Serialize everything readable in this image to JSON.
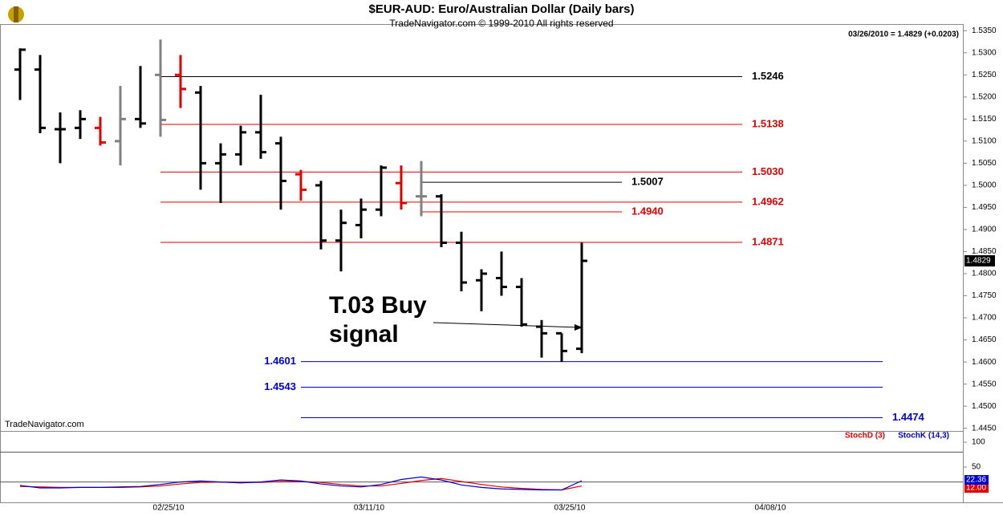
{
  "chart_data": [
    {
      "type": "ohlc",
      "title": "$EUR-AUD:  Euro/Australian Dollar  (Daily bars)",
      "subtitle": "TradeNavigator.com © 1999-2010 All rights reserved",
      "status": "03/26/2010 = 1.4829 (+0.0203)",
      "watermark": "TradeNavigator.com",
      "annotation": [
        "T.03 Buy",
        "signal"
      ],
      "xlim": [
        -1,
        47
      ],
      "xticks": [
        {
          "value": 7,
          "label": "02/25/10"
        },
        {
          "value": 17,
          "label": "03/11/10"
        },
        {
          "value": 27,
          "label": "03/25/10"
        },
        {
          "value": 37,
          "label": "04/08/10"
        }
      ],
      "ylim": [
        1.4444,
        1.5365
      ],
      "yticks": [
        {
          "value": 1.445,
          "label": "1.4450"
        },
        {
          "value": 1.45,
          "label": "1.4500"
        },
        {
          "value": 1.455,
          "label": "1.4550"
        },
        {
          "value": 1.46,
          "label": "1.4600"
        },
        {
          "value": 1.465,
          "label": "1.4650"
        },
        {
          "value": 1.47,
          "label": "1.4700"
        },
        {
          "value": 1.475,
          "label": "1.4750"
        },
        {
          "value": 1.48,
          "label": "1.4800"
        },
        {
          "value": 1.485,
          "label": "1.4850"
        },
        {
          "value": 1.49,
          "label": "1.4900"
        },
        {
          "value": 1.495,
          "label": "1.4950"
        },
        {
          "value": 1.5,
          "label": "1.5000"
        },
        {
          "value": 1.505,
          "label": "1.5050"
        },
        {
          "value": 1.51,
          "label": "1.5100"
        },
        {
          "value": 1.515,
          "label": "1.5150"
        },
        {
          "value": 1.52,
          "label": "1.5200"
        },
        {
          "value": 1.525,
          "label": "1.5250"
        },
        {
          "value": 1.53,
          "label": "1.5300"
        },
        {
          "value": 1.535,
          "label": "1.5350"
        }
      ],
      "last_price": 1.4829,
      "open": [
        1.5262,
        1.5262,
        1.5127,
        1.513,
        1.513,
        1.51,
        1.515,
        1.525,
        1.525,
        1.521,
        1.505,
        1.507,
        1.512,
        1.5095,
        1.5025,
        1.5,
        1.4875,
        1.491,
        1.4945,
        1.5005,
        1.4975,
        1.4975,
        1.487,
        1.4785,
        1.479,
        1.477,
        1.468,
        1.4665,
        1.463
      ],
      "high": [
        1.531,
        1.5295,
        1.5165,
        1.517,
        1.5155,
        1.5225,
        1.527,
        1.533,
        1.5295,
        1.5225,
        1.5095,
        1.5135,
        1.5205,
        1.511,
        1.5035,
        1.501,
        1.4945,
        1.497,
        1.5045,
        1.5045,
        1.5055,
        1.498,
        1.4895,
        1.481,
        1.485,
        1.479,
        1.4695,
        1.4665,
        1.487
      ],
      "low": [
        1.5193,
        1.5118,
        1.505,
        1.5105,
        1.509,
        1.5045,
        1.513,
        1.511,
        1.5175,
        1.499,
        1.496,
        1.5045,
        1.506,
        1.4945,
        1.4965,
        1.4855,
        1.4805,
        1.488,
        1.493,
        1.4945,
        1.493,
        1.486,
        1.476,
        1.4715,
        1.475,
        1.468,
        1.461,
        1.46,
        1.462
      ],
      "close": [
        1.5307,
        1.513,
        1.5127,
        1.515,
        1.5097,
        1.515,
        1.514,
        1.5148,
        1.5218,
        1.505,
        1.507,
        1.512,
        1.5075,
        1.501,
        1.499,
        1.4875,
        1.4915,
        1.4945,
        1.504,
        1.496,
        1.4975,
        1.487,
        1.478,
        1.48,
        1.477,
        1.4685,
        1.4665,
        1.4625,
        1.4829
      ],
      "bar_colors": [
        "#000000",
        "#000000",
        "#000000",
        "#000000",
        "#e00000",
        "#808080",
        "#000000",
        "#808080",
        "#e00000",
        "#000000",
        "#000000",
        "#000000",
        "#000000",
        "#000000",
        "#e00000",
        "#000000",
        "#000000",
        "#000000",
        "#000000",
        "#e00000",
        "#808080",
        "#000000",
        "#000000",
        "#000000",
        "#000000",
        "#000000",
        "#000000",
        "#000000",
        "#000000"
      ],
      "levels": [
        {
          "value": 1.5246,
          "label": "1.5246",
          "color": "#000000",
          "from": 7,
          "to": 36
        },
        {
          "value": 1.5138,
          "label": "1.5138",
          "color": "#e00000",
          "from": 7,
          "to": 36
        },
        {
          "value": 1.503,
          "label": "1.5030",
          "color": "#e00000",
          "from": 7,
          "to": 36
        },
        {
          "value": 1.4962,
          "label": "1.4962",
          "color": "#e00000",
          "from": 7,
          "to": 36
        },
        {
          "value": 1.4871,
          "label": "1.4871",
          "color": "#e00000",
          "from": 7,
          "to": 36
        },
        {
          "value": 1.5007,
          "label": "1.5007",
          "color": "#000000",
          "from": 20,
          "to": 30
        },
        {
          "value": 1.494,
          "label": "1.4940",
          "color": "#e00000",
          "from": 20,
          "to": 30
        },
        {
          "value": 1.4601,
          "label": "1.4601",
          "color": "#0000cc",
          "from": 14,
          "to": 43
        },
        {
          "value": 1.4543,
          "label": "1.4543",
          "color": "#0000cc",
          "from": 14,
          "to": 43
        },
        {
          "value": 1.4474,
          "label": "1.4474",
          "color": "#0000cc",
          "from": 14,
          "to": 43
        }
      ]
    },
    {
      "type": "line",
      "xlim": [
        -1,
        47
      ],
      "ylim": [
        -21,
        122.6
      ],
      "yticks": [
        50,
        100
      ],
      "levels": [
        20,
        80
      ],
      "series": [
        {
          "name": "StochD (3)",
          "color": "#e00000",
          "values": [
            11,
            10,
            9,
            9,
            9,
            9,
            10,
            12,
            16,
            19,
            20,
            19,
            19,
            21,
            21,
            19,
            15,
            12,
            12,
            17,
            23,
            27,
            21,
            15,
            10,
            7,
            5,
            4,
            12
          ],
          "value_labels": [
            null,
            null,
            null,
            null,
            null,
            null,
            null,
            null,
            null,
            null,
            null,
            null,
            null,
            null,
            null,
            null,
            null,
            null,
            null,
            null,
            null,
            null,
            null,
            null,
            null,
            null,
            null,
            null,
            "12.00"
          ]
        },
        {
          "name": "StochK (14,3)",
          "color": "#0000cc",
          "values": [
            13,
            8,
            8,
            9,
            9,
            10,
            11,
            15,
            20,
            22,
            20,
            18,
            20,
            24,
            22,
            16,
            12,
            10,
            15,
            25,
            30,
            24,
            14,
            9,
            6,
            5,
            4,
            4,
            22.36
          ]
        }
      ]
    }
  ]
}
